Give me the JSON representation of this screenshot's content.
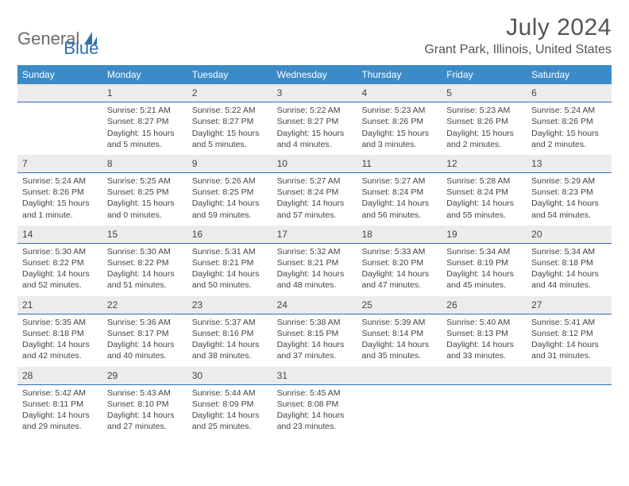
{
  "logo": {
    "text1": "General",
    "text2": "Blue"
  },
  "title": "July 2024",
  "location": "Grant Park, Illinois, United States",
  "colors": {
    "header_bg": "#3b8bc9",
    "divider": "#2f6fb0",
    "daynum_bg": "#ececec",
    "text": "#444444"
  },
  "day_names": [
    "Sunday",
    "Monday",
    "Tuesday",
    "Wednesday",
    "Thursday",
    "Friday",
    "Saturday"
  ],
  "weeks": [
    [
      {
        "n": "",
        "sr": "",
        "ss": "",
        "dl": ""
      },
      {
        "n": "1",
        "sr": "Sunrise: 5:21 AM",
        "ss": "Sunset: 8:27 PM",
        "dl": "Daylight: 15 hours and 5 minutes."
      },
      {
        "n": "2",
        "sr": "Sunrise: 5:22 AM",
        "ss": "Sunset: 8:27 PM",
        "dl": "Daylight: 15 hours and 5 minutes."
      },
      {
        "n": "3",
        "sr": "Sunrise: 5:22 AM",
        "ss": "Sunset: 8:27 PM",
        "dl": "Daylight: 15 hours and 4 minutes."
      },
      {
        "n": "4",
        "sr": "Sunrise: 5:23 AM",
        "ss": "Sunset: 8:26 PM",
        "dl": "Daylight: 15 hours and 3 minutes."
      },
      {
        "n": "5",
        "sr": "Sunrise: 5:23 AM",
        "ss": "Sunset: 8:26 PM",
        "dl": "Daylight: 15 hours and 2 minutes."
      },
      {
        "n": "6",
        "sr": "Sunrise: 5:24 AM",
        "ss": "Sunset: 8:26 PM",
        "dl": "Daylight: 15 hours and 2 minutes."
      }
    ],
    [
      {
        "n": "7",
        "sr": "Sunrise: 5:24 AM",
        "ss": "Sunset: 8:26 PM",
        "dl": "Daylight: 15 hours and 1 minute."
      },
      {
        "n": "8",
        "sr": "Sunrise: 5:25 AM",
        "ss": "Sunset: 8:25 PM",
        "dl": "Daylight: 15 hours and 0 minutes."
      },
      {
        "n": "9",
        "sr": "Sunrise: 5:26 AM",
        "ss": "Sunset: 8:25 PM",
        "dl": "Daylight: 14 hours and 59 minutes."
      },
      {
        "n": "10",
        "sr": "Sunrise: 5:27 AM",
        "ss": "Sunset: 8:24 PM",
        "dl": "Daylight: 14 hours and 57 minutes."
      },
      {
        "n": "11",
        "sr": "Sunrise: 5:27 AM",
        "ss": "Sunset: 8:24 PM",
        "dl": "Daylight: 14 hours and 56 minutes."
      },
      {
        "n": "12",
        "sr": "Sunrise: 5:28 AM",
        "ss": "Sunset: 8:24 PM",
        "dl": "Daylight: 14 hours and 55 minutes."
      },
      {
        "n": "13",
        "sr": "Sunrise: 5:29 AM",
        "ss": "Sunset: 8:23 PM",
        "dl": "Daylight: 14 hours and 54 minutes."
      }
    ],
    [
      {
        "n": "14",
        "sr": "Sunrise: 5:30 AM",
        "ss": "Sunset: 8:22 PM",
        "dl": "Daylight: 14 hours and 52 minutes."
      },
      {
        "n": "15",
        "sr": "Sunrise: 5:30 AM",
        "ss": "Sunset: 8:22 PM",
        "dl": "Daylight: 14 hours and 51 minutes."
      },
      {
        "n": "16",
        "sr": "Sunrise: 5:31 AM",
        "ss": "Sunset: 8:21 PM",
        "dl": "Daylight: 14 hours and 50 minutes."
      },
      {
        "n": "17",
        "sr": "Sunrise: 5:32 AM",
        "ss": "Sunset: 8:21 PM",
        "dl": "Daylight: 14 hours and 48 minutes."
      },
      {
        "n": "18",
        "sr": "Sunrise: 5:33 AM",
        "ss": "Sunset: 8:20 PM",
        "dl": "Daylight: 14 hours and 47 minutes."
      },
      {
        "n": "19",
        "sr": "Sunrise: 5:34 AM",
        "ss": "Sunset: 8:19 PM",
        "dl": "Daylight: 14 hours and 45 minutes."
      },
      {
        "n": "20",
        "sr": "Sunrise: 5:34 AM",
        "ss": "Sunset: 8:18 PM",
        "dl": "Daylight: 14 hours and 44 minutes."
      }
    ],
    [
      {
        "n": "21",
        "sr": "Sunrise: 5:35 AM",
        "ss": "Sunset: 8:18 PM",
        "dl": "Daylight: 14 hours and 42 minutes."
      },
      {
        "n": "22",
        "sr": "Sunrise: 5:36 AM",
        "ss": "Sunset: 8:17 PM",
        "dl": "Daylight: 14 hours and 40 minutes."
      },
      {
        "n": "23",
        "sr": "Sunrise: 5:37 AM",
        "ss": "Sunset: 8:16 PM",
        "dl": "Daylight: 14 hours and 38 minutes."
      },
      {
        "n": "24",
        "sr": "Sunrise: 5:38 AM",
        "ss": "Sunset: 8:15 PM",
        "dl": "Daylight: 14 hours and 37 minutes."
      },
      {
        "n": "25",
        "sr": "Sunrise: 5:39 AM",
        "ss": "Sunset: 8:14 PM",
        "dl": "Daylight: 14 hours and 35 minutes."
      },
      {
        "n": "26",
        "sr": "Sunrise: 5:40 AM",
        "ss": "Sunset: 8:13 PM",
        "dl": "Daylight: 14 hours and 33 minutes."
      },
      {
        "n": "27",
        "sr": "Sunrise: 5:41 AM",
        "ss": "Sunset: 8:12 PM",
        "dl": "Daylight: 14 hours and 31 minutes."
      }
    ],
    [
      {
        "n": "28",
        "sr": "Sunrise: 5:42 AM",
        "ss": "Sunset: 8:11 PM",
        "dl": "Daylight: 14 hours and 29 minutes."
      },
      {
        "n": "29",
        "sr": "Sunrise: 5:43 AM",
        "ss": "Sunset: 8:10 PM",
        "dl": "Daylight: 14 hours and 27 minutes."
      },
      {
        "n": "30",
        "sr": "Sunrise: 5:44 AM",
        "ss": "Sunset: 8:09 PM",
        "dl": "Daylight: 14 hours and 25 minutes."
      },
      {
        "n": "31",
        "sr": "Sunrise: 5:45 AM",
        "ss": "Sunset: 8:08 PM",
        "dl": "Daylight: 14 hours and 23 minutes."
      },
      {
        "n": "",
        "sr": "",
        "ss": "",
        "dl": ""
      },
      {
        "n": "",
        "sr": "",
        "ss": "",
        "dl": ""
      },
      {
        "n": "",
        "sr": "",
        "ss": "",
        "dl": ""
      }
    ]
  ]
}
